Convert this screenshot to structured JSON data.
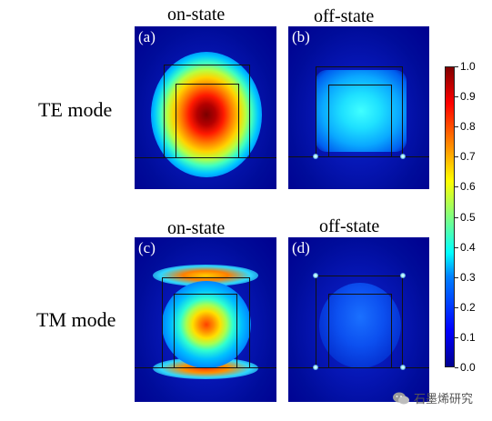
{
  "columns": {
    "top_left_title": "on-state",
    "top_right_title": "off-state",
    "bottom_left_title": "on-state",
    "bottom_right_title": "off-state"
  },
  "rows": {
    "top_label": "TE mode",
    "bottom_label": "TM mode"
  },
  "panels": {
    "a": "(a)",
    "b": "(b)",
    "c": "(c)",
    "d": "(d)"
  },
  "colorbar": {
    "ticks": [
      "1.0",
      "0.9",
      "0.8",
      "0.7",
      "0.6",
      "0.5",
      "0.4",
      "0.3",
      "0.2",
      "0.1",
      "0.0"
    ],
    "colormap": "jet",
    "min_color": "#00008f",
    "max_color": "#800000"
  },
  "watermark": {
    "text": "石墨烯研究",
    "icon": "wechat-icon"
  }
}
